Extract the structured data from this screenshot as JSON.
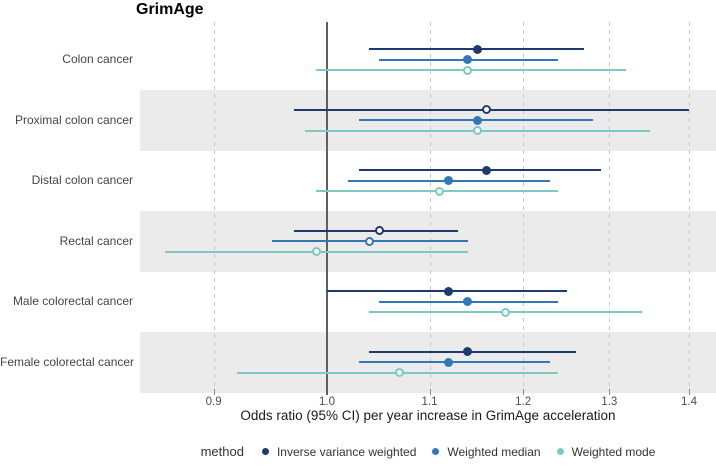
{
  "chart_data": {
    "type": "forest",
    "title": "GrimAge",
    "xlabel": "Odds ratio (95% CI) per year increase in GrimAge acceleration",
    "x_scale": "log",
    "x_ticks": [
      0.9,
      1.0,
      1.1,
      1.2,
      1.3,
      1.4
    ],
    "x_range": [
      0.84,
      1.44
    ],
    "reference_line": 1.0,
    "grid": "dashed-vertical",
    "legend_title": "method",
    "legend_position": "bottom",
    "categories": [
      "Colon cancer",
      "Proximal colon cancer",
      "Distal colon cancer",
      "Rectal cancer",
      "Male colorectal cancer",
      "Female colorectal cancer"
    ],
    "banded_categories": [
      "Proximal colon cancer",
      "Rectal cancer",
      "Female colorectal cancer"
    ],
    "series": [
      {
        "name": "Inverse variance weighted",
        "color": "#1e3a6e",
        "points": [
          {
            "category": "Colon cancer",
            "or": 1.15,
            "ci_low": 1.04,
            "ci_high": 1.27,
            "open_marker": false
          },
          {
            "category": "Proximal colon cancer",
            "or": 1.16,
            "ci_low": 0.97,
            "ci_high": 1.4,
            "open_marker": true
          },
          {
            "category": "Distal colon cancer",
            "or": 1.16,
            "ci_low": 1.03,
            "ci_high": 1.29,
            "open_marker": false
          },
          {
            "category": "Rectal cancer",
            "or": 1.05,
            "ci_low": 0.97,
            "ci_high": 1.13,
            "open_marker": true
          },
          {
            "category": "Male colorectal cancer",
            "or": 1.12,
            "ci_low": 1.0,
            "ci_high": 1.25,
            "open_marker": false
          },
          {
            "category": "Female colorectal cancer",
            "or": 1.14,
            "ci_low": 1.04,
            "ci_high": 1.26,
            "open_marker": false
          }
        ]
      },
      {
        "name": "Weighted median",
        "color": "#3178b4",
        "points": [
          {
            "category": "Colon cancer",
            "or": 1.14,
            "ci_low": 1.05,
            "ci_high": 1.24,
            "open_marker": false
          },
          {
            "category": "Proximal colon cancer",
            "or": 1.15,
            "ci_low": 1.03,
            "ci_high": 1.28,
            "open_marker": false
          },
          {
            "category": "Distal colon cancer",
            "or": 1.12,
            "ci_low": 1.02,
            "ci_high": 1.23,
            "open_marker": false
          },
          {
            "category": "Rectal cancer",
            "or": 1.04,
            "ci_low": 0.95,
            "ci_high": 1.14,
            "open_marker": true
          },
          {
            "category": "Male colorectal cancer",
            "or": 1.14,
            "ci_low": 1.05,
            "ci_high": 1.24,
            "open_marker": false
          },
          {
            "category": "Female colorectal cancer",
            "or": 1.12,
            "ci_low": 1.03,
            "ci_high": 1.23,
            "open_marker": false
          }
        ]
      },
      {
        "name": "Weighted mode",
        "color": "#7ccac2",
        "points": [
          {
            "category": "Colon cancer",
            "or": 1.14,
            "ci_low": 0.99,
            "ci_high": 1.32,
            "open_marker": true
          },
          {
            "category": "Proximal colon cancer",
            "or": 1.15,
            "ci_low": 0.98,
            "ci_high": 1.35,
            "open_marker": true
          },
          {
            "category": "Distal colon cancer",
            "or": 1.11,
            "ci_low": 0.99,
            "ci_high": 1.24,
            "open_marker": true
          },
          {
            "category": "Rectal cancer",
            "or": 0.99,
            "ci_low": 0.86,
            "ci_high": 1.14,
            "open_marker": true
          },
          {
            "category": "Male colorectal cancer",
            "or": 1.18,
            "ci_low": 1.04,
            "ci_high": 1.34,
            "open_marker": true
          },
          {
            "category": "Female colorectal cancer",
            "or": 1.07,
            "ci_low": 0.92,
            "ci_high": 1.24,
            "open_marker": true
          }
        ]
      }
    ],
    "colors": {
      "band": "#ebebeb",
      "gridline": "#c9c9c9",
      "reference_line": "#5f5f5f",
      "tick_text": "#4d4d4d",
      "category_text": "#454545"
    }
  }
}
